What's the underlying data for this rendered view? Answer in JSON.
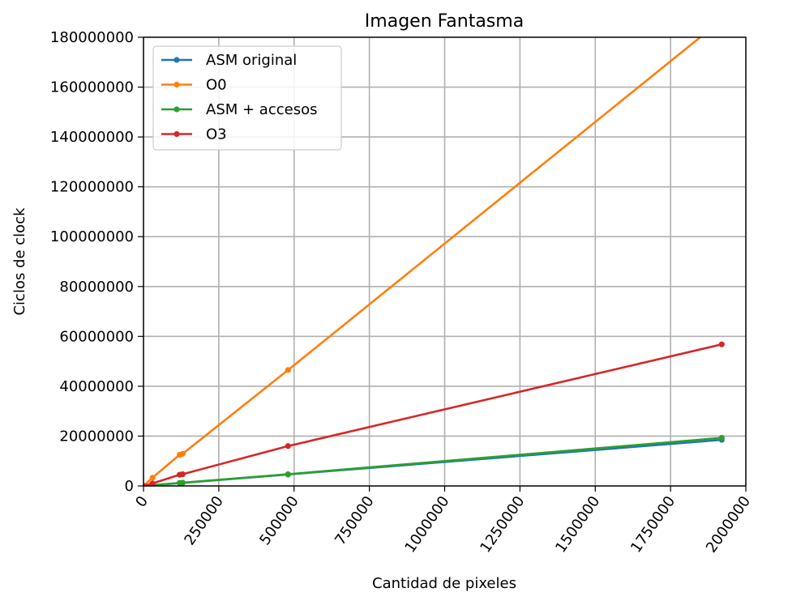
{
  "chart_data": {
    "type": "line",
    "title": "Imagen Fantasma",
    "xlabel": "Cantidad de pixeles",
    "ylabel": "Ciclos de clock",
    "xlim": [
      0,
      2000000
    ],
    "ylim": [
      0,
      180000000
    ],
    "xticks": [
      0,
      250000,
      500000,
      750000,
      1000000,
      1250000,
      1500000,
      1750000,
      2000000
    ],
    "yticks": [
      0,
      20000000,
      40000000,
      60000000,
      80000000,
      100000000,
      120000000,
      140000000,
      160000000,
      180000000
    ],
    "grid": true,
    "legend_position": "upper-left",
    "series": [
      {
        "name": "ASM original",
        "color": "#1f77b4",
        "x": [
          0,
          30000,
          120000,
          130000,
          480000,
          1920000
        ],
        "y": [
          0,
          290000,
          1150000,
          1250000,
          4600000,
          18500000
        ]
      },
      {
        "name": "O0",
        "color": "#ff7f0e",
        "x": [
          0,
          30000,
          120000,
          130000,
          480000,
          1920000
        ],
        "y": [
          0,
          3300000,
          12500000,
          12900000,
          46500000,
          187000000
        ]
      },
      {
        "name": "ASM + accesos",
        "color": "#2ca02c",
        "x": [
          0,
          30000,
          120000,
          130000,
          480000,
          1920000
        ],
        "y": [
          0,
          300000,
          1200000,
          1300000,
          4700000,
          19300000
        ]
      },
      {
        "name": "O3",
        "color": "#d62728",
        "x": [
          0,
          30000,
          120000,
          130000,
          480000,
          1920000
        ],
        "y": [
          0,
          1000000,
          4500000,
          4700000,
          16000000,
          56800000
        ]
      }
    ]
  }
}
